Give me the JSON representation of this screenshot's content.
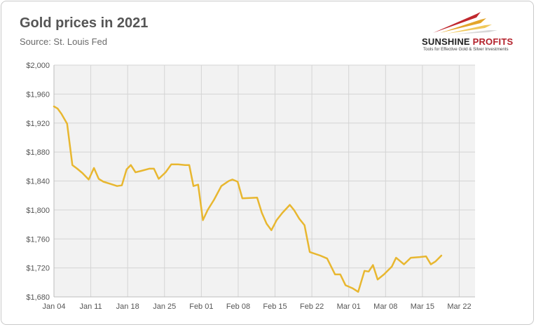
{
  "header": {
    "title": "Gold prices in 2021",
    "subtitle": "Source: St. Louis Fed"
  },
  "logo": {
    "name_part1": "SUNSHINE",
    "name_part2": " PROFITS",
    "tagline": "Tools for Effective Gold & Silver Investments"
  },
  "chart_data": {
    "type": "line",
    "title": "Gold prices in 2021",
    "subtitle": "Source: St. Louis Fed",
    "xlabel": "",
    "ylabel": "",
    "ylim": [
      1680,
      2000
    ],
    "xlim_day": [
      0,
      80
    ],
    "y_ticks": [
      1680,
      1720,
      1760,
      1800,
      1840,
      1880,
      1920,
      1960,
      2000
    ],
    "y_tick_labels": [
      "$1,680",
      "$1,720",
      "$1,760",
      "$1,800",
      "$1,840",
      "$1,880",
      "$1,920",
      "$1,960",
      "$2,000"
    ],
    "x_ticks": [
      {
        "day": 0,
        "label": "Jan 04"
      },
      {
        "day": 7,
        "label": "Jan 11"
      },
      {
        "day": 14,
        "label": "Jan 18"
      },
      {
        "day": 21,
        "label": "Jan 25"
      },
      {
        "day": 28,
        "label": "Feb 01"
      },
      {
        "day": 35,
        "label": "Feb 08"
      },
      {
        "day": 42,
        "label": "Feb 15"
      },
      {
        "day": 49,
        "label": "Feb 22"
      },
      {
        "day": 56,
        "label": "Mar 01"
      },
      {
        "day": 63,
        "label": "Mar 08"
      },
      {
        "day": 70,
        "label": "Mar 15"
      },
      {
        "day": 77,
        "label": "Mar 22"
      }
    ],
    "grid": true,
    "legend": "none",
    "series": [
      {
        "color": "#e8b730",
        "points": [
          [
            0,
            1943
          ],
          [
            0.7,
            1940
          ],
          [
            1.4,
            1933
          ],
          [
            2.5,
            1919
          ],
          [
            3.5,
            1862
          ],
          [
            4.4,
            1857
          ],
          [
            5.4,
            1851
          ],
          [
            6.6,
            1842
          ],
          [
            7.6,
            1858
          ],
          [
            8.5,
            1843
          ],
          [
            9.4,
            1839
          ],
          [
            10.7,
            1836
          ],
          [
            12.0,
            1833
          ],
          [
            12.9,
            1834
          ],
          [
            13.8,
            1856
          ],
          [
            14.6,
            1862
          ],
          [
            15.5,
            1852
          ],
          [
            16.6,
            1854
          ],
          [
            18.1,
            1857
          ],
          [
            19.0,
            1857
          ],
          [
            19.9,
            1843
          ],
          [
            21.2,
            1852
          ],
          [
            22.3,
            1863
          ],
          [
            23.6,
            1863
          ],
          [
            24.9,
            1862
          ],
          [
            25.7,
            1862
          ],
          [
            26.5,
            1833
          ],
          [
            27.4,
            1835
          ],
          [
            28.3,
            1786
          ],
          [
            29.2,
            1800
          ],
          [
            30.4,
            1814
          ],
          [
            31.8,
            1833
          ],
          [
            33.2,
            1840
          ],
          [
            33.9,
            1842
          ],
          [
            34.9,
            1839
          ],
          [
            35.8,
            1816
          ],
          [
            38.6,
            1817
          ],
          [
            39.5,
            1796
          ],
          [
            40.4,
            1781
          ],
          [
            41.3,
            1772
          ],
          [
            42.3,
            1786
          ],
          [
            43.4,
            1796
          ],
          [
            44.8,
            1807
          ],
          [
            45.6,
            1800
          ],
          [
            46.6,
            1788
          ],
          [
            47.6,
            1779
          ],
          [
            48.6,
            1742
          ],
          [
            50.6,
            1737
          ],
          [
            51.9,
            1733
          ],
          [
            53.4,
            1711
          ],
          [
            54.4,
            1711
          ],
          [
            55.4,
            1696
          ],
          [
            56.7,
            1692
          ],
          [
            57.8,
            1687
          ],
          [
            59.0,
            1716
          ],
          [
            59.8,
            1715
          ],
          [
            60.6,
            1724
          ],
          [
            61.5,
            1704
          ],
          [
            62.7,
            1711
          ],
          [
            64.2,
            1722
          ],
          [
            65.0,
            1734
          ],
          [
            66.5,
            1725
          ],
          [
            67.8,
            1734
          ],
          [
            69.5,
            1735
          ],
          [
            70.7,
            1736
          ],
          [
            71.6,
            1725
          ],
          [
            72.5,
            1729
          ],
          [
            73.6,
            1737
          ]
        ]
      }
    ]
  }
}
